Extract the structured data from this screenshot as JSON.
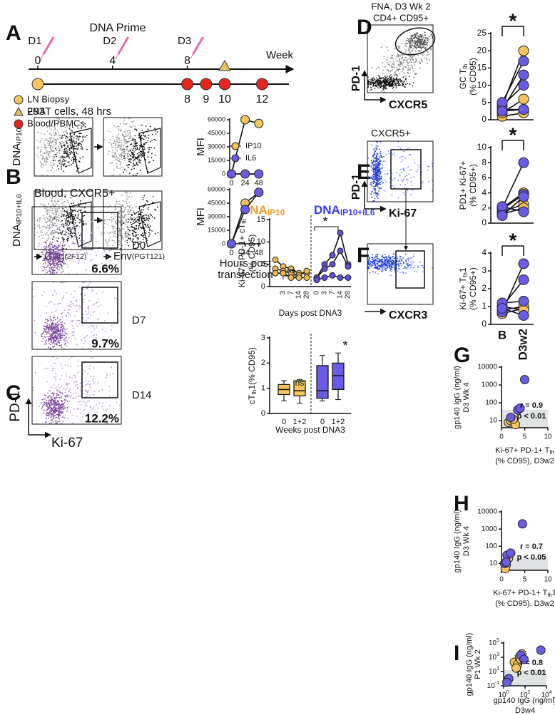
{
  "figure": {
    "panels": [
      "A",
      "B",
      "C",
      "D",
      "E",
      "F",
      "G",
      "H",
      "I"
    ],
    "timeline": {
      "title": "DNA Prime",
      "axis_label": "Week",
      "primes": [
        "D1",
        "D2",
        "D3"
      ],
      "prime_weeks": [
        0,
        4,
        8
      ],
      "sample_weeks": [
        8,
        9,
        10,
        12
      ],
      "legend": [
        "LN Biopsy",
        "FNA",
        "Blood/PBMCs"
      ]
    },
    "flow": {
      "b_title": "293T cells, 48 hrs",
      "b_rows": [
        [
          "DNA",
          "IP10"
        ],
        [
          "DNA",
          "IP10+IL6"
        ]
      ],
      "b_x": [
        [
          "Gag",
          "(2F12)"
        ],
        [
          "Env",
          "(PGT121)"
        ]
      ],
      "c_title": "Blood, CXCR5+",
      "c_days": [
        "D0",
        "D7",
        "D14"
      ],
      "c_pcts": [
        "6.6%",
        "9.7%",
        "12.2%"
      ],
      "c_y": "PD-1",
      "c_x": "Ki-67",
      "d_title": [
        "FNA, D3 Wk 2",
        "CD4+ CD95+"
      ],
      "d_y": "PD-1",
      "d_x": "CXCR5",
      "e_title": "CXCR5+",
      "e_y": "PD-1",
      "e_x": "Ki-67",
      "f_x": "CXCR3"
    },
    "c_legend": [
      {
        "label": [
          "DNA",
          "IP10"
        ],
        "color": "#f39a2d"
      },
      {
        "label": [
          "DNA",
          "IP10+IL6"
        ],
        "color": "#3b3be8"
      }
    ]
  },
  "chart_data": [
    {
      "type": "line",
      "ylabel": [
        "MFI"
      ],
      "x": [
        0,
        24,
        48
      ],
      "xlim": [
        -3,
        52
      ],
      "xticks": [
        0,
        24,
        48
      ],
      "ylim": [
        0,
        60000
      ],
      "yticks": [
        0,
        15000,
        30000,
        45000,
        60000
      ],
      "series": [
        {
          "name": "IP10",
          "color": "#f7c35c",
          "values": [
            0,
            60000,
            56000
          ]
        },
        {
          "name": "IL6",
          "color": "#6a5be6",
          "values": [
            0,
            0,
            0
          ]
        }
      ]
    },
    {
      "type": "line",
      "ylabel": [
        "MFI"
      ],
      "xlabel": [
        "Hours post",
        "transfection"
      ],
      "x": [
        0,
        24,
        48
      ],
      "xlim": [
        -3,
        52
      ],
      "xticks": [
        0,
        24,
        48
      ],
      "ylim": [
        0,
        60000
      ],
      "yticks": [
        0,
        15000,
        30000,
        45000,
        60000
      ],
      "series": [
        {
          "color": "#f7c35c",
          "values": [
            0,
            45000,
            57000
          ]
        },
        {
          "color": "#6a5be6",
          "values": [
            0,
            38000,
            57000
          ]
        }
      ]
    },
    {
      "type": "line",
      "ylabel": [
        [
          "Ki-67+ PD-1+ cT",
          "fh"
        ],
        "(% CD95)"
      ],
      "xlabel": [
        "Days post DNA3"
      ],
      "categories": [
        null,
        "3",
        "7",
        "14",
        "28",
        "0",
        "3",
        "7",
        "14",
        "28"
      ],
      "ylim": [
        0,
        15
      ],
      "yticks": [
        0,
        5,
        10,
        15
      ],
      "annotations": [
        "ns",
        "*"
      ],
      "series": [
        {
          "color": "#f2b84b",
          "values": [
            6,
            4.5,
            4,
            3,
            3,
            null,
            null,
            null,
            null,
            null
          ]
        },
        {
          "color": "#f2b84b",
          "values": [
            4,
            3.5,
            3,
            2.5,
            3.5,
            null,
            null,
            null,
            null,
            null
          ]
        },
        {
          "color": "#f2b84b",
          "values": [
            3,
            3,
            2,
            2,
            2,
            null,
            null,
            null,
            null,
            null
          ]
        },
        {
          "color": "#5b4fd6",
          "values": [
            null,
            null,
            null,
            null,
            null,
            2,
            5,
            7,
            12,
            5
          ]
        },
        {
          "color": "#5b4fd6",
          "values": [
            null,
            null,
            null,
            null,
            null,
            2,
            4,
            5,
            8,
            4.5
          ]
        },
        {
          "color": "#5b4fd6",
          "values": [
            null,
            null,
            null,
            null,
            null,
            1.5,
            2,
            2.5,
            2,
            2
          ]
        }
      ]
    },
    {
      "type": "box",
      "ylabel": [
        [
          "cT",
          "fh",
          "1(% CD95)"
        ]
      ],
      "xlabel": [
        "Weeks post DNA3"
      ],
      "categories": [
        "0",
        "1+2",
        "0",
        "1+2"
      ],
      "ylim": [
        0,
        3
      ],
      "yticks": [
        0,
        1,
        2,
        3
      ],
      "annotations": [
        "ns",
        "*"
      ],
      "boxes": [
        {
          "color": "#f7c35c",
          "min": 0.5,
          "q1": 0.75,
          "median": 0.95,
          "q3": 1.15,
          "max": 1.3
        },
        {
          "color": "#f7c35c",
          "min": 0.4,
          "q1": 0.7,
          "median": 0.9,
          "q3": 1.3,
          "max": 1.35
        },
        {
          "color": "#6a5be6",
          "min": 0.5,
          "q1": 0.6,
          "median": 0.9,
          "q3": 1.9,
          "max": 2.3
        },
        {
          "color": "#6a5be6",
          "min": 0.55,
          "q1": 0.95,
          "median": 1.5,
          "q3": 2.0,
          "max": 2.4
        }
      ]
    },
    {
      "type": "line",
      "ylabel": [
        [
          "GC T",
          "fh"
        ],
        "(% CD95)"
      ],
      "categories": [
        null,
        null
      ],
      "ylim": [
        0,
        25
      ],
      "yticks": [
        0,
        5,
        10,
        15,
        20,
        25
      ],
      "annotations": [
        "*"
      ],
      "series": [
        {
          "color": "#f7c35c",
          "values": [
            1,
            2
          ]
        },
        {
          "color": "#f7c35c",
          "values": [
            2,
            6
          ]
        },
        {
          "color": "#f7c35c",
          "values": [
            3,
            3
          ]
        },
        {
          "color": "#f7c35c",
          "values": [
            4,
            20
          ]
        },
        {
          "color": "#6a5be6",
          "values": [
            3,
            13
          ]
        },
        {
          "color": "#6a5be6",
          "values": [
            4,
            10
          ]
        },
        {
          "color": "#6a5be6",
          "values": [
            5,
            17
          ]
        },
        {
          "color": "#6a5be6",
          "values": [
            2.5,
            3
          ]
        }
      ]
    },
    {
      "type": "line",
      "ylabel": [
        "PD1+ Ki-67+",
        "(% CD95+)"
      ],
      "categories": [
        null,
        null
      ],
      "ylim": [
        0,
        10
      ],
      "yticks": [
        0,
        2,
        4,
        6,
        8,
        10
      ],
      "annotations": [
        "*"
      ],
      "series": [
        {
          "color": "#f7c35c",
          "values": [
            1.5,
            2.5
          ]
        },
        {
          "color": "#f7c35c",
          "values": [
            2,
            4
          ]
        },
        {
          "color": "#f7c35c",
          "values": [
            1.2,
            2
          ]
        },
        {
          "color": "#6a5be6",
          "values": [
            2,
            8
          ]
        },
        {
          "color": "#6a5be6",
          "values": [
            1.8,
            3.8
          ]
        },
        {
          "color": "#6a5be6",
          "values": [
            2.2,
            1.5
          ]
        },
        {
          "color": "#6a5be6",
          "values": [
            1,
            3.5
          ]
        }
      ]
    },
    {
      "type": "line",
      "ylabel": [
        [
          "Ki-67+ T",
          "fh",
          "1"
        ],
        "(% CD95+)"
      ],
      "categories": [
        "B",
        "D3w2"
      ],
      "ylim": [
        0,
        4
      ],
      "yticks": [
        0,
        1,
        2,
        3,
        4
      ],
      "annotations": [
        "*"
      ],
      "series": [
        {
          "color": "#f7c35c",
          "values": [
            0.6,
            0.9
          ]
        },
        {
          "color": "#f7c35c",
          "values": [
            0.8,
            1
          ]
        },
        {
          "color": "#f7c35c",
          "values": [
            1,
            0.8
          ]
        },
        {
          "color": "#6a5be6",
          "values": [
            0.7,
            3.4
          ]
        },
        {
          "color": "#6a5be6",
          "values": [
            1,
            2.5
          ]
        },
        {
          "color": "#6a5be6",
          "values": [
            1.2,
            1.3
          ]
        },
        {
          "color": "#6a5be6",
          "values": [
            0.9,
            0.5
          ]
        }
      ]
    },
    {
      "type": "scatter",
      "ylabel": [
        "gp140 IgG (ng/ml)",
        "D3 Wk 4"
      ],
      "xlabel": [
        [
          "Ki-67+ PD-1+ T",
          "fh"
        ],
        "(% CD95), D3w2"
      ],
      "ylog": true,
      "xlim": [
        0,
        10
      ],
      "xticks": [
        0,
        5,
        10
      ],
      "ylim": [
        4,
        10000
      ],
      "yticks": [
        10,
        100,
        1000,
        10000
      ],
      "annotations": [
        "r = 0.9",
        "p < 0.01"
      ],
      "series": [
        {
          "color": "#f7c35c",
          "x": [
            1.5,
            2,
            3,
            2.5
          ],
          "values": [
            8,
            10,
            6,
            12
          ]
        },
        {
          "color": "#6a5be6",
          "x": [
            3.5,
            4,
            2,
            5
          ],
          "values": [
            40,
            50,
            15,
            2000
          ]
        }
      ]
    },
    {
      "type": "scatter",
      "ylabel": [
        "gp140 IgG (ng/ml)",
        "D3 Wk 4"
      ],
      "xlabel": [
        [
          "Ki-67+ PD-1+ T",
          "fh",
          "1"
        ],
        "(% CD95), D3w2"
      ],
      "ylog": true,
      "xlim": [
        0,
        10
      ],
      "xticks": [
        0,
        5,
        10
      ],
      "ylim": [
        4,
        10000
      ],
      "yticks": [
        10,
        100,
        1000,
        10000
      ],
      "annotations": [
        "r = 0.7",
        "p < 0.05"
      ],
      "series": [
        {
          "color": "#f7c35c",
          "x": [
            1,
            0.8,
            1.5
          ],
          "values": [
            8,
            5,
            20
          ]
        },
        {
          "color": "#6a5be6",
          "x": [
            0.7,
            1.2,
            2,
            1,
            4.5
          ],
          "values": [
            10,
            30,
            40,
            12,
            2000
          ]
        }
      ]
    },
    {
      "type": "scatter",
      "ylabel": [
        "gp140 IgG (ng/ml)",
        "P1 Wk 2"
      ],
      "xlabel": [
        "gp140 IgG (ng/ml)",
        "D3w4"
      ],
      "ylog": true,
      "xlog": true,
      "xlim": [
        1,
        10000
      ],
      "xticks": [
        {
          "value": 1,
          "label": [
            "10",
            "0"
          ]
        },
        {
          "value": 100,
          "label": [
            "10",
            "2"
          ]
        },
        {
          "value": 10000,
          "label": [
            "10",
            "4"
          ]
        }
      ],
      "ylim": [
        0.1,
        100000
      ],
      "yticks": [
        {
          "value": 0.1,
          "label": [
            "10",
            "-1"
          ]
        },
        {
          "value": 10,
          "label": [
            "10",
            "1"
          ]
        },
        {
          "value": 1000,
          "label": [
            "10",
            "3"
          ]
        },
        {
          "value": 100000,
          "label": [
            "10",
            "5"
          ]
        }
      ],
      "annotations": [
        "r = 0.8",
        "p < 0.01"
      ],
      "series": [
        {
          "color": "#f7c35c",
          "x": [
            10,
            30,
            50,
            20,
            15,
            40
          ],
          "values": [
            200,
            1000,
            3000,
            100,
            30,
            500
          ]
        },
        {
          "color": "#6a5be6",
          "x": [
            40,
            80,
            3000,
            3,
            2
          ],
          "values": [
            2000,
            500,
            10000,
            1,
            0.3
          ]
        }
      ]
    }
  ]
}
